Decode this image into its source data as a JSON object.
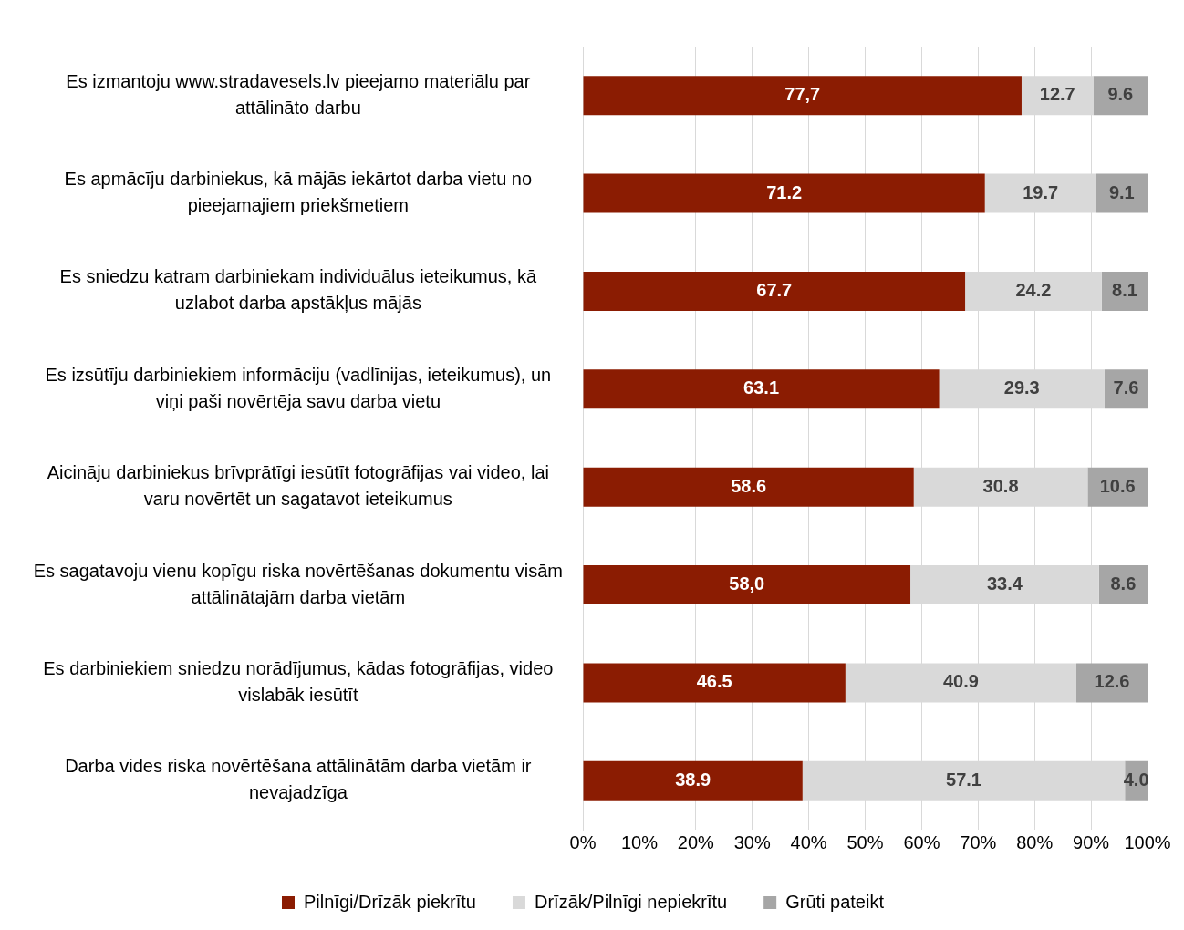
{
  "chart_data": {
    "type": "bar",
    "orientation": "horizontal",
    "stacked": true,
    "categories": [
      "Es izmantoju www.stradavesels.lv pieejamo materiālu par attālināto darbu",
      "Es apmācīju darbiniekus, kā mājās iekārtot darba vietu no pieejamajiem priekšmetiem",
      "Es sniedzu katram darbiniekam individuālus ieteikumus, kā uzlabot darba apstākļus mājās",
      "Es izsūtīju darbiniekiem informāciju (vadlīnijas, ieteikumus), un viņi paši novērtēja savu darba vietu",
      "Aicināju darbiniekus brīvprātīgi iesūtīt fotogrāfijas vai video, lai varu novērtēt un sagatavot ieteikumus",
      "Es sagatavoju vienu kopīgu riska novērtēšanas dokumentu visām attālinātajām darba vietām",
      "Es darbiniekiem sniedzu norādījumus, kādas fotogrāfijas, video vislabāk iesūtīt",
      "Darba vides riska novērtēšana attālinātām darba vietām ir nevajadzīga"
    ],
    "series": [
      {
        "name": "Pilnīgi/Drīzāk piekrītu",
        "color": "#8b1c02",
        "values": [
          77.7,
          71.2,
          67.7,
          63.1,
          58.6,
          58.0,
          46.5,
          38.9
        ],
        "value_labels": [
          "77,7",
          "71.2",
          "67.7",
          "63.1",
          "58.6",
          "58,0",
          "46.5",
          "38.9"
        ]
      },
      {
        "name": "Drīzāk/Pilnīgi nepiekrītu",
        "color": "#d9d9d9",
        "values": [
          12.7,
          19.7,
          24.2,
          29.3,
          30.8,
          33.4,
          40.9,
          57.1
        ],
        "value_labels": [
          "12.7",
          "19.7",
          "24.2",
          "29.3",
          "30.8",
          "33.4",
          "40.9",
          "57.1"
        ]
      },
      {
        "name": "Grūti pateikt",
        "color": "#a6a6a6",
        "values": [
          9.6,
          9.1,
          8.1,
          7.6,
          10.6,
          8.6,
          12.6,
          4.0
        ],
        "value_labels": [
          "9.6",
          "9.1",
          "8.1",
          "7.6",
          "10.6",
          "8.6",
          "12.6",
          "4.0"
        ]
      }
    ],
    "xlim": [
      0,
      100
    ],
    "xticks": [
      {
        "value": 0,
        "label": "0%"
      },
      {
        "value": 10,
        "label": "10%"
      },
      {
        "value": 20,
        "label": "20%"
      },
      {
        "value": 30,
        "label": "30%"
      },
      {
        "value": 40,
        "label": "40%"
      },
      {
        "value": 50,
        "label": "50%"
      },
      {
        "value": 60,
        "label": "60%"
      },
      {
        "value": 70,
        "label": "70%"
      },
      {
        "value": 80,
        "label": "80%"
      },
      {
        "value": 90,
        "label": "90%"
      },
      {
        "value": 100,
        "label": "100%"
      }
    ],
    "grid": "x",
    "legend": "bottom"
  }
}
